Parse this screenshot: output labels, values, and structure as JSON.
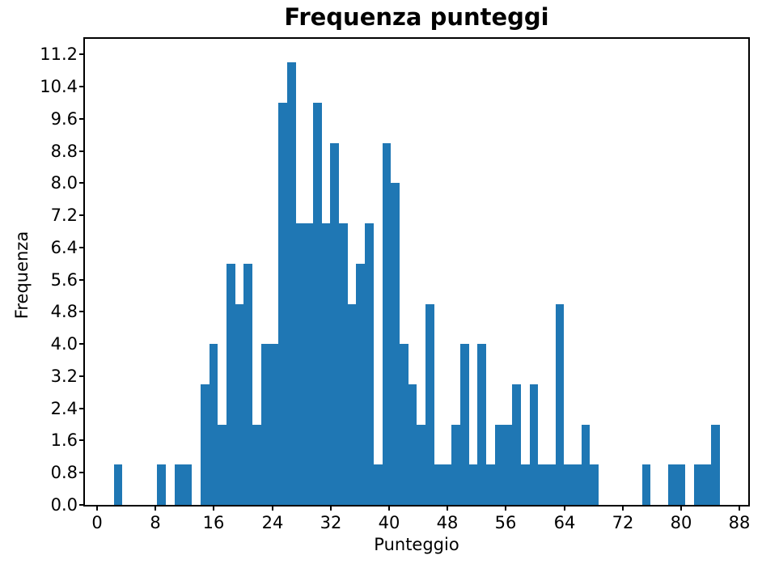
{
  "figure": {
    "title": "Frequenza punteggi",
    "xlabel": "Punteggio",
    "ylabel": "Frequenza"
  },
  "chart_data": {
    "type": "bar",
    "subtype": "histogram",
    "title": "Frequenza punteggi",
    "xlabel": "Punteggio",
    "ylabel": "Frequenza",
    "bin_start": 2.3,
    "bin_width": 1.186,
    "counts": [
      1,
      0,
      0,
      0,
      0,
      1,
      0,
      1,
      1,
      0,
      3,
      4,
      2,
      6,
      5,
      6,
      2,
      4,
      4,
      10,
      11,
      7,
      7,
      10,
      7,
      9,
      7,
      5,
      6,
      7,
      1,
      9,
      8,
      4,
      3,
      2,
      5,
      1,
      1,
      2,
      4,
      1,
      4,
      1,
      2,
      2,
      3,
      1,
      3,
      1,
      1,
      5,
      1,
      1,
      2,
      1,
      0,
      0,
      0,
      0,
      0,
      1,
      0,
      0,
      1,
      1,
      0,
      1,
      1,
      2
    ],
    "x_ticks": [
      0,
      8,
      16,
      24,
      32,
      40,
      48,
      56,
      64,
      72,
      80,
      88
    ],
    "y_ticks": [
      {
        "value": 0.0,
        "label": "0.0"
      },
      {
        "value": 0.8,
        "label": "0.8"
      },
      {
        "value": 1.6,
        "label": "1.6"
      },
      {
        "value": 2.4,
        "label": "2.4"
      },
      {
        "value": 3.2,
        "label": "3.2"
      },
      {
        "value": 4.0,
        "label": "4.0"
      },
      {
        "value": 4.8,
        "label": "4.8"
      },
      {
        "value": 5.6,
        "label": "5.6"
      },
      {
        "value": 6.4,
        "label": "6.4"
      },
      {
        "value": 7.2,
        "label": "7.2"
      },
      {
        "value": 8.0,
        "label": "8.0"
      },
      {
        "value": 8.8,
        "label": "8.8"
      },
      {
        "value": 9.6,
        "label": "9.6"
      },
      {
        "value": 10.4,
        "label": "10.4"
      },
      {
        "value": 11.2,
        "label": "11.2"
      }
    ],
    "xlim": [
      -1.663,
      89.197
    ],
    "ylim": [
      0,
      11.59
    ],
    "bar_color": "#1f77b4",
    "axis_color": "#000000",
    "text_color": "#000000",
    "background": "#ffffff",
    "grid": false,
    "legend": null
  }
}
